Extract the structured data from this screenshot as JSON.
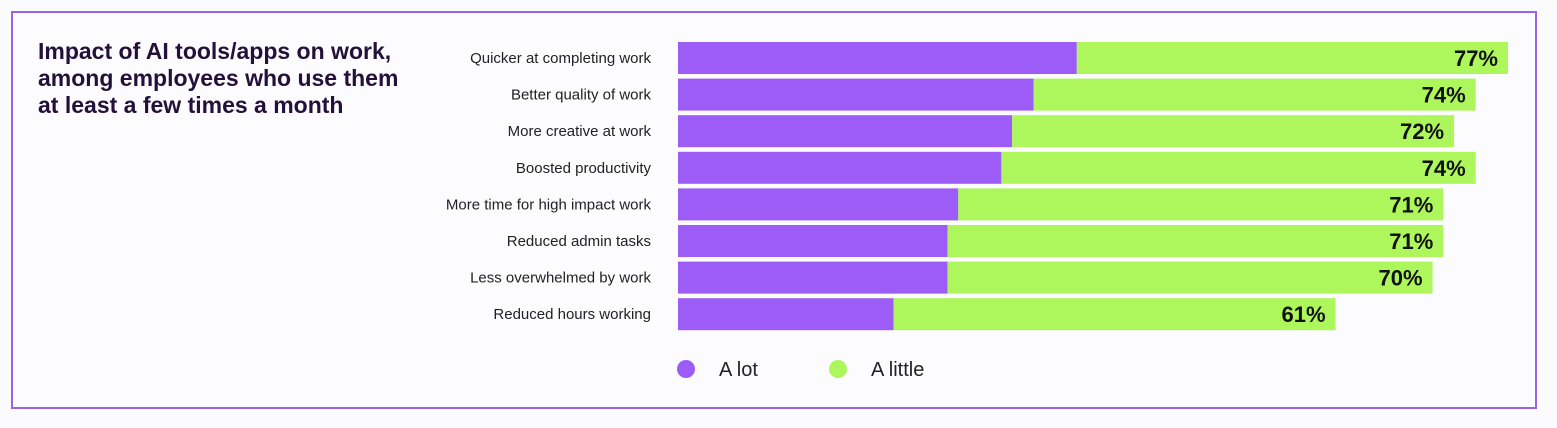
{
  "chart_data": {
    "type": "bar",
    "orientation": "horizontal",
    "stacked": true,
    "title": "Impact of AI tools/apps on work, among employees who use them at least a few times a month",
    "categories": [
      "Quicker at completing work",
      "Better quality of work",
      "More creative at work",
      "Boosted productivity",
      "More time for high impact work",
      "Reduced admin tasks",
      "Less overwhelmed by work",
      "Reduced hours working"
    ],
    "series": [
      {
        "name": "A lot",
        "color": "#9d5cf5",
        "values": [
          37,
          33,
          31,
          30,
          26,
          25,
          25,
          20
        ]
      },
      {
        "name": "A little",
        "color": "#adf65c",
        "values": [
          40,
          41,
          41,
          44,
          45,
          46,
          45,
          41
        ]
      }
    ],
    "totals": [
      77,
      74,
      72,
      74,
      71,
      71,
      70,
      61
    ],
    "total_labels": [
      "77%",
      "74%",
      "72%",
      "74%",
      "71%",
      "71%",
      "70%",
      "61%"
    ],
    "legend_position": "bottom",
    "grid": false,
    "xlim": [
      0,
      77
    ]
  }
}
